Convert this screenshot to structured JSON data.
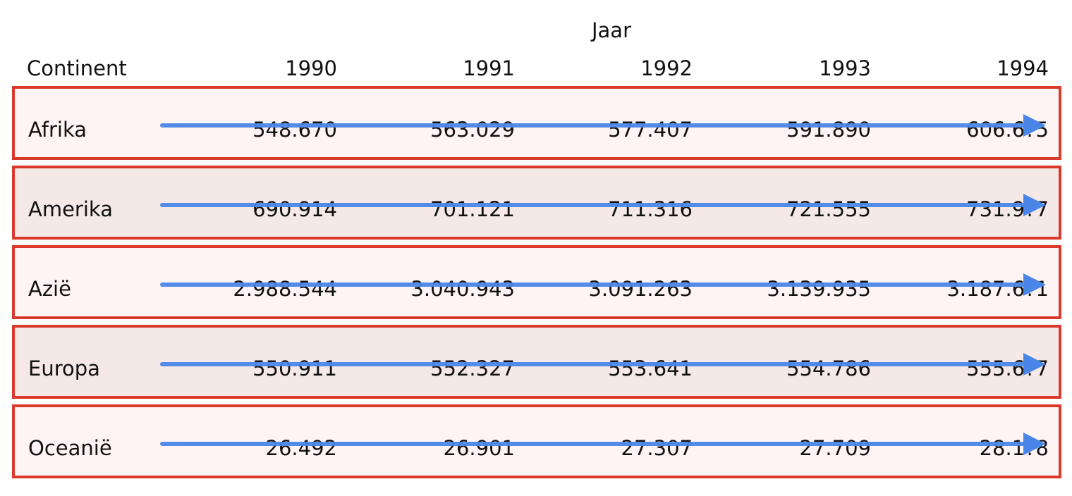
{
  "chart_data": {
    "type": "table",
    "column_header_title": "Jaar",
    "row_header_title": "Continent",
    "columns": [
      "1990",
      "1991",
      "1992",
      "1993",
      "1994"
    ],
    "rows": [
      {
        "label": "Afrika",
        "cells": [
          "548.670",
          "563.029",
          "577.407",
          "591.890",
          "606.6?5"
        ],
        "values": [
          548670,
          563029,
          577407,
          591890,
          null
        ]
      },
      {
        "label": "Amerika",
        "cells": [
          "690.914",
          "701.121",
          "711.316",
          "721.555",
          "731.9?7"
        ],
        "values": [
          690914,
          701121,
          711316,
          721555,
          null
        ]
      },
      {
        "label": "Azië",
        "cells": [
          "2.988.544",
          "3.040.943",
          "3.091.263",
          "3.139.935",
          "3.187.6?1"
        ],
        "values": [
          2988544,
          3040943,
          3091263,
          3139935,
          null
        ]
      },
      {
        "label": "Europa",
        "cells": [
          "550.911",
          "552.327",
          "553.641",
          "554.786",
          "555.6?7"
        ],
        "values": [
          550911,
          552327,
          553641,
          554786,
          null
        ]
      },
      {
        "label": "Oceanië",
        "cells": [
          "26.492",
          "26.901",
          "27.307",
          "27.709",
          "28.1?8"
        ],
        "values": [
          26492,
          26901,
          27307,
          27709,
          null
        ]
      }
    ],
    "highlight_color": "#d93a2b",
    "arrow_color": "#4a86e8",
    "annotation": "trend-arrow-across-each-row"
  }
}
